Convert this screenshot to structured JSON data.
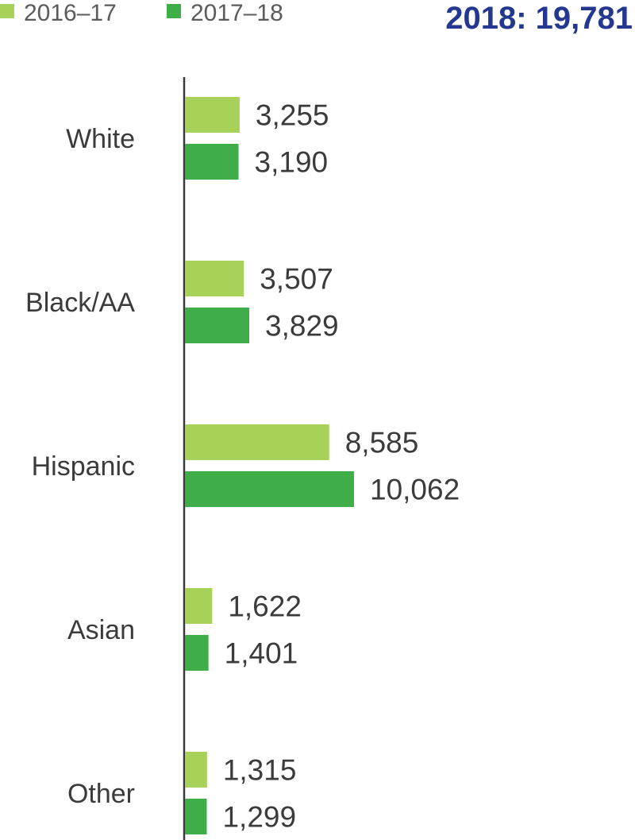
{
  "total": {
    "label": "2018: 19,781",
    "color": "#24388f"
  },
  "chart_data": {
    "type": "bar",
    "orientation": "horizontal",
    "categories": [
      "White",
      "Black/AA",
      "Hispanic",
      "Asian",
      "Other"
    ],
    "series": [
      {
        "name": "2016–17",
        "color": "#a8d15a",
        "values": [
          3255,
          3507,
          8585,
          1622,
          1315
        ],
        "labels": [
          "3,255",
          "3,507",
          "8,585",
          "1,622",
          "1,315"
        ]
      },
      {
        "name": "2017–18",
        "color": "#3fae49",
        "values": [
          3190,
          3829,
          10062,
          1401,
          1299
        ],
        "labels": [
          "3,190",
          "3,829",
          "10,062",
          "1,401",
          "1,299"
        ]
      }
    ],
    "legend": "top-left",
    "grid": false
  }
}
